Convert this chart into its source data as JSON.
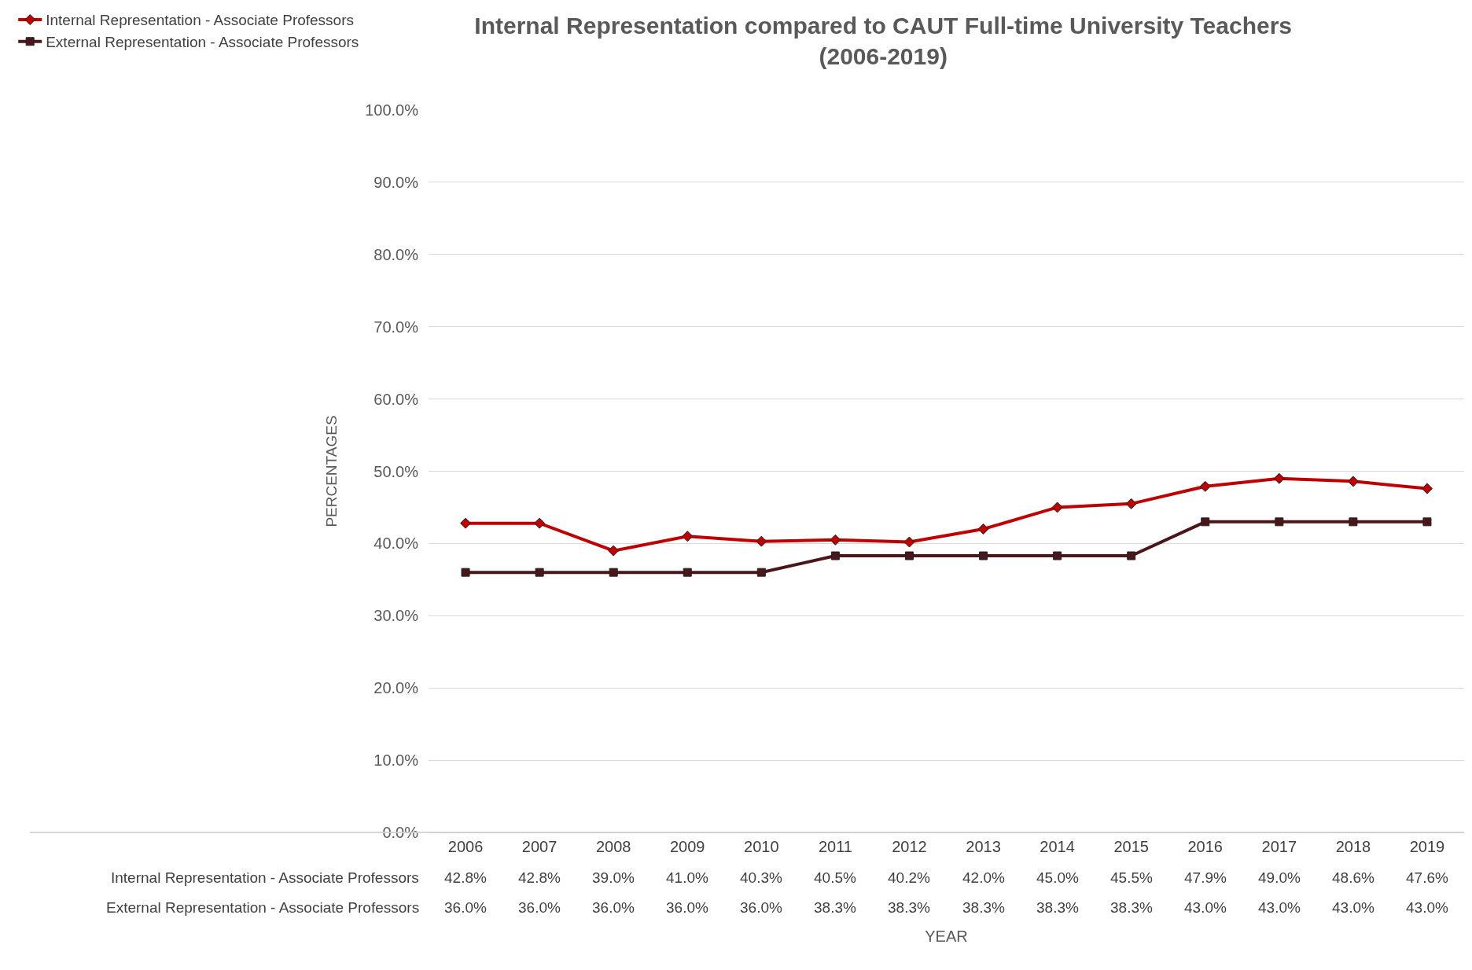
{
  "chart_data": {
    "type": "line",
    "title": "Internal Representation compared to CAUT Full-time University Teachers\n(2006-2019)",
    "xlabel": "YEAR",
    "ylabel": "PERCENTAGES",
    "categories": [
      "2006",
      "2007",
      "2008",
      "2009",
      "2010",
      "2011",
      "2012",
      "2013",
      "2014",
      "2015",
      "2016",
      "2017",
      "2018",
      "2019"
    ],
    "series": [
      {
        "name": "Internal Representation - Associate Professors",
        "color": "#c00000",
        "marker": "diamond",
        "values": [
          42.8,
          42.8,
          39.0,
          41.0,
          40.3,
          40.5,
          40.2,
          42.0,
          45.0,
          45.5,
          47.9,
          49.0,
          48.6,
          47.6
        ],
        "value_labels": [
          "42.8%",
          "42.8%",
          "39.0%",
          "41.0%",
          "40.3%",
          "40.5%",
          "40.2%",
          "42.0%",
          "45.0%",
          "45.5%",
          "47.9%",
          "49.0%",
          "48.6%",
          "47.6%"
        ]
      },
      {
        "name": "External Representation - Associate Professors",
        "color": "#4b1619",
        "marker": "square",
        "values": [
          36.0,
          36.0,
          36.0,
          36.0,
          36.0,
          38.3,
          38.3,
          38.3,
          38.3,
          38.3,
          43.0,
          43.0,
          43.0,
          43.0
        ],
        "value_labels": [
          "36.0%",
          "36.0%",
          "36.0%",
          "36.0%",
          "36.0%",
          "38.3%",
          "38.3%",
          "38.3%",
          "38.3%",
          "38.3%",
          "43.0%",
          "43.0%",
          "43.0%",
          "43.0%"
        ]
      }
    ],
    "ylim": [
      0,
      100
    ],
    "yticks": [
      {
        "value": 0,
        "label": "0.0%"
      },
      {
        "value": 10,
        "label": "10.0%"
      },
      {
        "value": 20,
        "label": "20.0%"
      },
      {
        "value": 30,
        "label": "30.0%"
      },
      {
        "value": 40,
        "label": "40.0%"
      },
      {
        "value": 50,
        "label": "50.0%"
      },
      {
        "value": 60,
        "label": "60.0%"
      },
      {
        "value": 70,
        "label": "70.0%"
      },
      {
        "value": 80,
        "label": "80.0%"
      },
      {
        "value": 90,
        "label": "90.0%"
      },
      {
        "value": 100,
        "label": "100.0%"
      }
    ],
    "grid": "y",
    "legend": "top left",
    "line_style": "solid"
  }
}
